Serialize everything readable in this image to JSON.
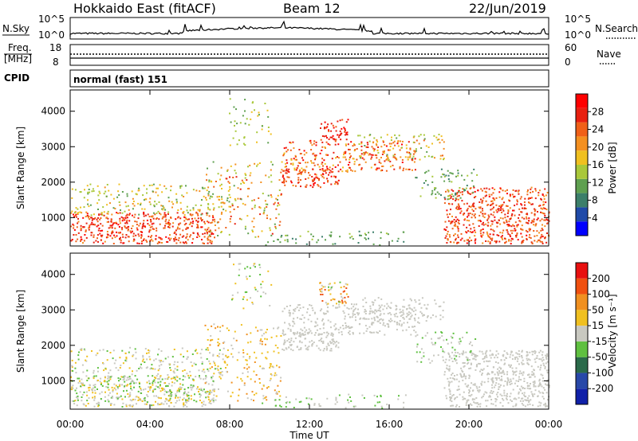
{
  "header": {
    "title": "Hokkaido East (fitACF)",
    "beam": "Beam 12",
    "date": "22/Jun/2019"
  },
  "nsky_panel": {
    "left_label": "N.Sky",
    "right_label": "N.Search",
    "left_top": "10^5",
    "left_bottom": "10^0",
    "right_top": "10^5",
    "right_bottom": "10^0"
  },
  "freq_panel": {
    "label_line1": "Freq.",
    "label_line2": "[MHz]",
    "left_top": "18",
    "left_bottom": "8",
    "right_label": "Nave",
    "right_top": "60",
    "right_bottom": "0"
  },
  "cpid_panel": {
    "label": "CPID",
    "text": "normal (fast) 151"
  },
  "chart_data": [
    {
      "type": "heatmap",
      "name_key": "power",
      "ylabel": "Slant Range [km]",
      "y_ticks": [
        "1000",
        "2000",
        "3000",
        "4000"
      ],
      "ylim": [
        200,
        4600
      ],
      "colorbar": {
        "label": "Power [dB]",
        "ticks": [
          "4",
          "8",
          "12",
          "16",
          "20",
          "24",
          "28"
        ],
        "colors": [
          "#0000ff",
          "#1f4aa8",
          "#3c7f6a",
          "#5fa050",
          "#a9c83a",
          "#f0c020",
          "#f49020",
          "#f06018",
          "#e82010",
          "#ff0000"
        ]
      }
    },
    {
      "type": "heatmap",
      "name_key": "velocity",
      "ylabel": "Slant Range [km]",
      "y_ticks": [
        "1000",
        "2000",
        "3000",
        "4000"
      ],
      "ylim": [
        200,
        4600
      ],
      "colorbar": {
        "label": "Velocity [m s⁻¹]",
        "ticks": [
          "200",
          "100",
          "50",
          "15",
          "-15",
          "-50",
          "-100",
          "-200"
        ],
        "colors": [
          "#1020a8",
          "#2848a8",
          "#2a6a4a",
          "#5fc040",
          "#c8c8c0",
          "#f0c020",
          "#f09020",
          "#f05010",
          "#e81010"
        ]
      }
    }
  ],
  "x_axis": {
    "label": "Time UT",
    "ticks": [
      "00:00",
      "04:00",
      "08:00",
      "12:00",
      "16:00",
      "20:00",
      "00:00"
    ]
  }
}
